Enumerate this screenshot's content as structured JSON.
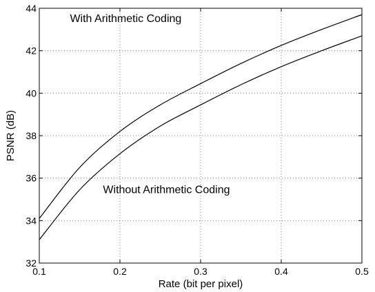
{
  "chart_data": {
    "type": "line",
    "title": "",
    "xlabel": "Rate (bit per pixel)",
    "ylabel": "PSNR (dB)",
    "xlim": [
      0.1,
      0.5
    ],
    "ylim": [
      32,
      44
    ],
    "xticks": [
      "0.1",
      "0.2",
      "0.3",
      "0.4",
      "0.5"
    ],
    "yticks": [
      "32",
      "34",
      "36",
      "38",
      "40",
      "42",
      "44"
    ],
    "grid": true,
    "series": [
      {
        "x": [
          0.1,
          0.15,
          0.2,
          0.25,
          0.3,
          0.35,
          0.4,
          0.45,
          0.5
        ],
        "y": [
          34.1,
          36.5,
          38.2,
          39.45,
          40.45,
          41.4,
          42.25,
          43.0,
          43.7
        ]
      },
      {
        "x": [
          0.1,
          0.15,
          0.2,
          0.25,
          0.3,
          0.35,
          0.4,
          0.45,
          0.5
        ],
        "y": [
          33.1,
          35.45,
          37.15,
          38.45,
          39.45,
          40.4,
          41.25,
          42.0,
          42.7
        ]
      }
    ],
    "annotations": [
      {
        "text": "With Arithmetic Coding",
        "x": 0.138,
        "y": 43.35
      },
      {
        "text": "Without Arithmetic Coding",
        "x": 0.179,
        "y": 35.3
      }
    ]
  }
}
